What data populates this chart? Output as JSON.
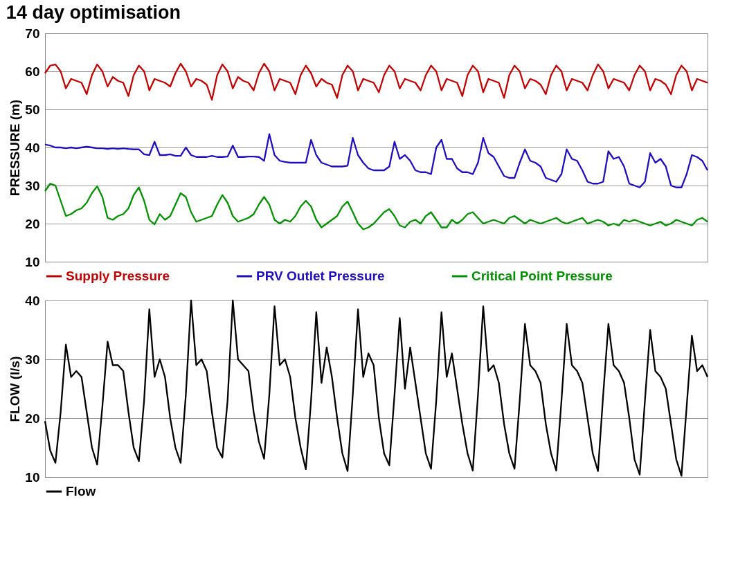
{
  "chart_data": [
    {
      "type": "line",
      "title": "14 day optimisation",
      "ylabel": "PRESSURE (m)",
      "ylim": [
        10,
        70
      ],
      "yticks": [
        10,
        20,
        30,
        40,
        50,
        60,
        70
      ],
      "grid": "y",
      "legend": "bottom",
      "tick_labels": "y",
      "categories": [
        null,
        null,
        null,
        null,
        null,
        null,
        null,
        null,
        null,
        null,
        null,
        null,
        null,
        null,
        null,
        null,
        null,
        null,
        null,
        null,
        null,
        null,
        null,
        null,
        null,
        null,
        null,
        null,
        null,
        null,
        null,
        null,
        null,
        null,
        null,
        null,
        null,
        null,
        null,
        null,
        null,
        null,
        null,
        null,
        null,
        null,
        null,
        null,
        null,
        null,
        null,
        null,
        null,
        null,
        null,
        null,
        null,
        null,
        null,
        null,
        null,
        null,
        null,
        null,
        null,
        null,
        null,
        null,
        null,
        null,
        null,
        null,
        null,
        null,
        null,
        null,
        null,
        null,
        null,
        null,
        null,
        null,
        null,
        null,
        null,
        null,
        null,
        null,
        null,
        null,
        null,
        null,
        null,
        null,
        null,
        null,
        null,
        null,
        null,
        null,
        null,
        null,
        null,
        null,
        null,
        null,
        null,
        null,
        null,
        null,
        null,
        null,
        null,
        null,
        null,
        null,
        null,
        null,
        null,
        null,
        null,
        null,
        null,
        null,
        null,
        null,
        null,
        null
      ],
      "series": [
        {
          "name": "Supply Pressure",
          "color": "#c00000",
          "values": [
            59.5,
            61.5,
            61.8,
            60,
            55.5,
            58,
            57.5,
            57,
            54,
            59,
            61.8,
            60,
            56,
            58.5,
            57.5,
            57,
            53.5,
            59,
            61.5,
            60,
            55,
            58,
            57.5,
            57,
            56,
            59.5,
            62,
            60,
            56,
            58,
            57.5,
            56.5,
            52.5,
            59,
            61.8,
            60,
            55.5,
            58.5,
            57.5,
            57,
            55,
            59.5,
            62,
            60,
            55,
            58,
            57.5,
            57,
            54,
            59,
            61.5,
            59.5,
            56,
            58,
            57,
            56.5,
            53,
            59,
            61.5,
            60,
            55,
            58,
            57.5,
            57,
            54.5,
            59,
            61.5,
            60,
            55.5,
            58,
            57.5,
            57,
            55,
            59,
            61.5,
            60,
            55,
            58,
            57.5,
            57,
            53.5,
            59,
            61.5,
            60,
            54.5,
            58,
            57.5,
            57,
            53,
            59,
            61.5,
            60,
            55.5,
            58,
            57.5,
            56.5,
            54,
            59,
            61.5,
            60,
            55,
            58,
            57.5,
            57,
            55,
            59,
            61.8,
            60,
            55.5,
            58,
            57.5,
            57,
            55,
            59,
            61.5,
            60,
            55,
            58,
            57.5,
            56.5,
            54,
            59,
            61.5,
            60,
            55,
            58,
            57.5,
            57
          ]
        },
        {
          "name": "PRV Outlet Pressure",
          "color": "#1f0fbf",
          "values": [
            40.8,
            40.5,
            40,
            40,
            39.8,
            40,
            39.8,
            40,
            40.2,
            40,
            39.8,
            39.8,
            39.6,
            39.8,
            39.6,
            39.8,
            39.6,
            39.5,
            39.5,
            38.2,
            38,
            41.5,
            38,
            38,
            38.2,
            37.8,
            37.8,
            40,
            38,
            37.5,
            37.5,
            37.5,
            37.8,
            37.5,
            37.5,
            37.6,
            40.5,
            37.5,
            37.5,
            37.6,
            37.6,
            37.5,
            36.5,
            43.5,
            38,
            36.5,
            36.2,
            36,
            36,
            36,
            36,
            42,
            38,
            36,
            35.5,
            35,
            35,
            35,
            35.2,
            42.5,
            38,
            36,
            34.5,
            34,
            34,
            34,
            35,
            41.5,
            37,
            38,
            36.5,
            34,
            33.5,
            33.5,
            33,
            40,
            42,
            37,
            37,
            34.5,
            33.5,
            33.5,
            33,
            36,
            42.5,
            38.5,
            37.5,
            35,
            32.5,
            32,
            32,
            36,
            39.5,
            36.5,
            36,
            35,
            32,
            31.5,
            31,
            33,
            39.5,
            37,
            36.5,
            34,
            31,
            30.5,
            30.5,
            31,
            39,
            37,
            37.5,
            35,
            30.5,
            30,
            29.5,
            31,
            38.5,
            36,
            37,
            35,
            30,
            29.5,
            29.5,
            33,
            38,
            37.5,
            36.5,
            34
          ]
        },
        {
          "name": "Critical Point Pressure",
          "color": "#009000",
          "values": [
            28.5,
            30.5,
            30,
            26,
            22,
            22.5,
            23.5,
            24,
            25.5,
            28,
            29.8,
            27,
            21.5,
            21,
            22,
            22.5,
            24,
            27.5,
            29.5,
            26,
            21,
            19.8,
            22.5,
            21,
            22,
            25,
            28,
            27,
            23,
            20.5,
            21,
            21.5,
            22,
            25,
            27.5,
            25.5,
            22,
            20.5,
            21,
            21.5,
            22.5,
            25,
            27,
            25,
            21,
            20,
            21,
            20.5,
            22,
            24.5,
            26,
            24.5,
            21,
            19,
            20,
            21,
            22,
            24.5,
            25.8,
            23,
            20,
            18.5,
            19,
            20,
            21.5,
            23,
            23.8,
            22,
            19.5,
            19,
            20.5,
            21,
            20,
            22,
            23,
            21,
            19,
            19,
            21,
            20,
            21,
            22.5,
            23,
            21.5,
            20,
            20.5,
            21,
            20.5,
            20,
            21.5,
            22,
            21,
            20,
            21,
            20.5,
            20,
            20.5,
            21,
            21.5,
            20.5,
            20,
            20.5,
            21,
            21.5,
            20,
            20.5,
            21,
            20.5,
            19.5,
            20,
            19.5,
            21,
            20.5,
            21,
            20.5,
            20,
            19.5,
            20,
            20.5,
            19.5,
            20,
            21,
            20.5,
            20,
            19.5,
            21,
            21.5,
            20.5
          ]
        }
      ]
    },
    {
      "type": "line",
      "ylabel": "FLOW (l/s)",
      "ylim": [
        10,
        40
      ],
      "yticks": [
        10,
        20,
        30,
        40
      ],
      "grid": "y",
      "legend": "bottom",
      "tick_labels": "y",
      "categories": [
        null,
        null,
        null,
        null,
        null,
        null,
        null,
        null,
        null,
        null,
        null,
        null,
        null,
        null,
        null,
        null,
        null,
        null,
        null,
        null,
        null,
        null,
        null,
        null,
        null,
        null,
        null,
        null,
        null,
        null,
        null,
        null,
        null,
        null,
        null,
        null,
        null,
        null,
        null,
        null,
        null,
        null,
        null,
        null,
        null,
        null,
        null,
        null,
        null,
        null,
        null,
        null,
        null,
        null,
        null,
        null,
        null,
        null,
        null,
        null,
        null,
        null,
        null,
        null,
        null,
        null,
        null,
        null,
        null,
        null,
        null,
        null,
        null,
        null,
        null,
        null,
        null,
        null,
        null,
        null,
        null,
        null,
        null,
        null,
        null,
        null,
        null,
        null,
        null,
        null,
        null,
        null,
        null,
        null,
        null,
        null,
        null,
        null,
        null,
        null,
        null,
        null,
        null,
        null,
        null,
        null,
        null,
        null,
        null,
        null,
        null,
        null,
        null,
        null,
        null,
        null,
        null,
        null,
        null,
        null,
        null,
        null,
        null,
        null,
        null,
        null,
        null,
        null
      ],
      "series": [
        {
          "name": "Flow",
          "color": "#000000",
          "values": [
            19.5,
            14.5,
            12.4,
            21,
            32.5,
            27,
            28,
            27,
            21,
            15,
            12.1,
            22,
            33,
            29,
            29,
            28,
            21,
            15,
            12.7,
            23,
            38.5,
            27,
            30,
            27,
            20,
            15,
            12.4,
            24,
            40,
            29,
            30,
            28,
            21,
            15,
            13.3,
            23,
            40,
            30,
            29,
            28,
            21,
            16,
            13.1,
            24,
            39,
            29,
            30,
            27,
            20,
            15,
            11.3,
            23,
            38,
            26,
            32,
            27,
            20,
            14,
            11,
            24,
            38.5,
            27,
            31,
            29,
            20,
            14,
            12,
            24,
            37,
            25,
            32,
            26,
            20,
            14,
            11.4,
            23,
            38,
            27,
            31,
            25,
            19,
            14,
            11.1,
            24,
            39,
            28,
            29,
            26,
            19,
            14,
            11.4,
            23,
            36,
            29,
            28,
            26,
            19,
            14,
            11.1,
            23,
            36,
            29,
            28,
            26,
            20,
            14,
            11,
            24,
            36,
            29,
            28,
            26,
            20,
            13,
            10.4,
            23,
            35,
            28,
            27,
            25,
            19,
            13,
            10.2,
            22,
            34,
            28,
            29,
            27
          ]
        }
      ]
    }
  ]
}
